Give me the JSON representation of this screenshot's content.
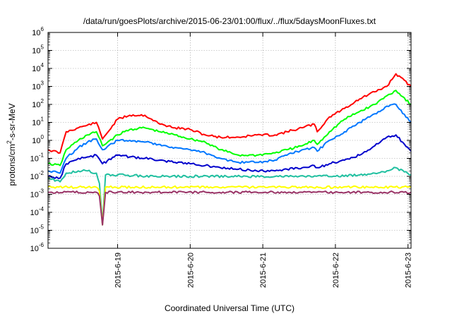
{
  "chart_data": {
    "type": "line",
    "title": "/data/run/goesPlots/archive/2015-06-23/01:00/flux/../flux/5daysMoonFluxes.txt",
    "xlabel": "Coordinated Universal Time (UTC)",
    "ylabel": {
      "prefix": "protons/cm",
      "sup": "2",
      "suffix": "-s-sr-MeV"
    },
    "yscale": "log",
    "ylim": [
      1e-06,
      1000000.0
    ],
    "xlim": [
      "2015-06-18 01:00",
      "2015-06-23 01:00"
    ],
    "grid": true,
    "y_ticks": [
      {
        "value": 1e-06,
        "base": "10",
        "exp": "-6"
      },
      {
        "value": 1e-05,
        "base": "10",
        "exp": "-5"
      },
      {
        "value": 0.0001,
        "base": "10",
        "exp": "-4"
      },
      {
        "value": 0.001,
        "base": "10",
        "exp": "-3"
      },
      {
        "value": 0.01,
        "base": "10",
        "exp": "-2"
      },
      {
        "value": 0.1,
        "base": "10",
        "exp": "-1"
      },
      {
        "value": 1,
        "base": "10",
        "exp": "0"
      },
      {
        "value": 10.0,
        "base": "10",
        "exp": "1"
      },
      {
        "value": 100.0,
        "base": "10",
        "exp": "2"
      },
      {
        "value": 1000.0,
        "base": "10",
        "exp": "3"
      },
      {
        "value": 10000.0,
        "base": "10",
        "exp": "4"
      },
      {
        "value": 100000.0,
        "base": "10",
        "exp": "5"
      },
      {
        "value": 1000000.0,
        "base": "10",
        "exp": "6"
      }
    ],
    "x_ticks": [
      {
        "value": "2015-06-19 00:00",
        "label": "2015-6-19"
      },
      {
        "value": "2015-06-20 00:00",
        "label": "2015-6-20"
      },
      {
        "value": "2015-06-21 00:00",
        "label": "2015-6-21"
      },
      {
        "value": "2015-06-22 00:00",
        "label": "2015-6-22"
      },
      {
        "value": "2015-06-23 00:00",
        "label": "2015-6-23"
      }
    ],
    "series": [
      {
        "color": "#ff0000",
        "x": [
          "2015-06-18 01:00",
          "2015-06-18 05:00",
          "2015-06-18 07:00",
          "2015-06-18 11:00",
          "2015-06-18 14:00",
          "2015-06-18 17:00",
          "2015-06-18 19:00",
          "2015-06-19 00:00",
          "2015-06-19 04:00",
          "2015-06-19 09:00",
          "2015-06-19 14:00",
          "2015-06-19 19:00",
          "2015-06-20 00:00",
          "2015-06-20 05:00",
          "2015-06-20 10:00",
          "2015-06-20 16:00",
          "2015-06-20 22:00",
          "2015-06-21 04:00",
          "2015-06-21 08:00",
          "2015-06-21 13:00",
          "2015-06-21 17:00",
          "2015-06-21 18:00",
          "2015-06-21 22:00",
          "2015-06-22 03:00",
          "2015-06-22 08:00",
          "2015-06-22 13:00",
          "2015-06-22 17:00",
          "2015-06-22 20:00",
          "2015-06-23 01:00"
        ],
        "y": [
          0.3,
          0.2,
          3,
          5,
          7,
          10,
          1.2,
          15,
          25,
          25,
          8,
          5,
          4,
          2,
          1.5,
          1.5,
          2,
          2,
          3,
          5,
          8,
          3,
          20,
          60,
          200,
          500,
          1000,
          5000,
          1000
        ]
      },
      {
        "color": "#00ff00",
        "x": [
          "2015-06-18 01:00",
          "2015-06-18 05:00",
          "2015-06-18 07:00",
          "2015-06-18 11:00",
          "2015-06-18 14:00",
          "2015-06-18 17:00",
          "2015-06-18 19:00",
          "2015-06-19 00:00",
          "2015-06-19 04:00",
          "2015-06-19 09:00",
          "2015-06-19 14:00",
          "2015-06-19 19:00",
          "2015-06-20 00:00",
          "2015-06-20 05:00",
          "2015-06-20 10:00",
          "2015-06-20 16:00",
          "2015-06-20 22:00",
          "2015-06-21 04:00",
          "2015-06-21 08:00",
          "2015-06-21 13:00",
          "2015-06-21 17:00",
          "2015-06-21 18:00",
          "2015-06-21 22:00",
          "2015-06-22 03:00",
          "2015-06-22 08:00",
          "2015-06-22 13:00",
          "2015-06-22 17:00",
          "2015-06-22 20:00",
          "2015-06-23 01:00"
        ],
        "y": [
          0.05,
          0.04,
          0.3,
          1,
          2,
          3,
          0.5,
          2,
          4,
          5,
          3,
          2,
          1.2,
          0.8,
          0.3,
          0.15,
          0.15,
          0.2,
          0.3,
          0.5,
          1,
          0.6,
          3,
          15,
          40,
          100,
          300,
          600,
          100
        ]
      },
      {
        "color": "#0077ff",
        "x": [
          "2015-06-18 01:00",
          "2015-06-18 05:00",
          "2015-06-18 07:00",
          "2015-06-18 11:00",
          "2015-06-18 14:00",
          "2015-06-18 17:00",
          "2015-06-18 19:00",
          "2015-06-19 00:00",
          "2015-06-19 04:00",
          "2015-06-19 09:00",
          "2015-06-19 14:00",
          "2015-06-19 19:00",
          "2015-06-20 00:00",
          "2015-06-20 05:00",
          "2015-06-20 10:00",
          "2015-06-20 16:00",
          "2015-06-20 22:00",
          "2015-06-21 04:00",
          "2015-06-21 08:00",
          "2015-06-21 13:00",
          "2015-06-21 17:00",
          "2015-06-21 18:00",
          "2015-06-21 22:00",
          "2015-06-22 03:00",
          "2015-06-22 08:00",
          "2015-06-22 13:00",
          "2015-06-22 17:00",
          "2015-06-22 20:00",
          "2015-06-23 01:00"
        ],
        "y": [
          0.02,
          0.015,
          0.1,
          0.4,
          0.8,
          1.2,
          0.3,
          1,
          1,
          0.8,
          0.6,
          0.4,
          0.3,
          0.2,
          0.1,
          0.06,
          0.06,
          0.08,
          0.15,
          0.3,
          0.4,
          0.25,
          1,
          3,
          10,
          30,
          80,
          100,
          10
        ]
      },
      {
        "color": "#0000cc",
        "x": [
          "2015-06-18 01:00",
          "2015-06-18 05:00",
          "2015-06-18 07:00",
          "2015-06-18 11:00",
          "2015-06-18 14:00",
          "2015-06-18 17:00",
          "2015-06-18 19:00",
          "2015-06-19 00:00",
          "2015-06-19 04:00",
          "2015-06-19 09:00",
          "2015-06-19 14:00",
          "2015-06-19 19:00",
          "2015-06-20 00:00",
          "2015-06-20 05:00",
          "2015-06-20 10:00",
          "2015-06-20 16:00",
          "2015-06-20 22:00",
          "2015-06-21 04:00",
          "2015-06-21 08:00",
          "2015-06-21 13:00",
          "2015-06-21 17:00",
          "2015-06-21 18:00",
          "2015-06-21 22:00",
          "2015-06-22 03:00",
          "2015-06-22 08:00",
          "2015-06-22 13:00",
          "2015-06-22 17:00",
          "2015-06-22 20:00",
          "2015-06-23 01:00"
        ],
        "y": [
          0.01,
          0.008,
          0.05,
          0.1,
          0.12,
          0.15,
          0.05,
          0.15,
          0.12,
          0.1,
          0.08,
          0.06,
          0.05,
          0.04,
          0.03,
          0.025,
          0.02,
          0.02,
          0.025,
          0.03,
          0.04,
          0.03,
          0.05,
          0.08,
          0.15,
          0.5,
          1.5,
          2,
          0.25
        ]
      },
      {
        "color": "#20c0a0",
        "x": [
          "2015-06-18 01:00",
          "2015-06-18 05:00",
          "2015-06-18 07:00",
          "2015-06-18 11:00",
          "2015-06-18 14:00",
          "2015-06-18 17:00",
          "2015-06-18 18:00",
          "2015-06-18 19:00",
          "2015-06-18 20:00",
          "2015-06-19 00:00",
          "2015-06-19 12:00",
          "2015-06-20 00:00",
          "2015-06-20 12:00",
          "2015-06-21 00:00",
          "2015-06-21 12:00",
          "2015-06-22 00:00",
          "2015-06-22 08:00",
          "2015-06-22 13:00",
          "2015-06-22 17:00",
          "2015-06-22 20:00",
          "2015-06-23 01:00"
        ],
        "y": [
          0.008,
          0.005,
          0.015,
          0.02,
          0.02,
          0.015,
          0.004,
          2e-05,
          0.012,
          0.012,
          0.01,
          0.01,
          0.01,
          0.01,
          0.01,
          0.01,
          0.012,
          0.015,
          0.02,
          0.03,
          0.012
        ]
      },
      {
        "color": "#ffff00",
        "x": [
          "2015-06-18 01:00",
          "2015-06-18 17:00",
          "2015-06-18 18:00",
          "2015-06-18 19:00",
          "2015-06-18 20:00",
          "2015-06-19 12:00",
          "2015-06-20 12:00",
          "2015-06-21 12:00",
          "2015-06-22 12:00",
          "2015-06-23 01:00"
        ],
        "y": [
          0.0025,
          0.0025,
          0.0015,
          2e-05,
          0.0025,
          0.0025,
          0.0025,
          0.0025,
          0.0025,
          0.0025
        ]
      },
      {
        "color": "#993366",
        "x": [
          "2015-06-18 01:00",
          "2015-06-18 17:00",
          "2015-06-18 18:00",
          "2015-06-18 19:00",
          "2015-06-18 20:00",
          "2015-06-19 12:00",
          "2015-06-20 12:00",
          "2015-06-21 12:00",
          "2015-06-22 12:00",
          "2015-06-23 01:00"
        ],
        "y": [
          0.0013,
          0.0013,
          0.0008,
          2e-05,
          0.0013,
          0.0013,
          0.0013,
          0.0013,
          0.0013,
          0.0013
        ]
      }
    ]
  }
}
